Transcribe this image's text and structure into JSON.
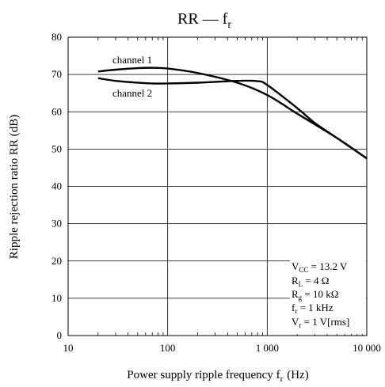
{
  "chart_data": {
    "type": "line",
    "title": "RR — f",
    "title_sub": "r",
    "xlabel": "Power supply ripple frequency f",
    "xlabel_sub": "r",
    "xlabel_suffix": "(Hz)",
    "ylabel": "Ripple rejection ratio RR (dB)",
    "x_scale": "log",
    "xlim": [
      10,
      10000
    ],
    "ylim": [
      0,
      80
    ],
    "x_ticks": [
      10,
      100,
      1000,
      10000
    ],
    "x_tick_labels": [
      "10",
      "100",
      "1 000",
      "10 000"
    ],
    "y_ticks": [
      0,
      10,
      20,
      30,
      40,
      50,
      60,
      70,
      80
    ],
    "y_tick_labels": [
      "0",
      "10",
      "20",
      "30",
      "40",
      "50",
      "60",
      "70",
      "80"
    ],
    "grid": true,
    "series": [
      {
        "name": "channel 1",
        "x": [
          20,
          30,
          50,
          70,
          100,
          200,
          500,
          1000,
          2000,
          5000,
          10000
        ],
        "y": [
          70.8,
          71.3,
          71.7,
          71.8,
          71.6,
          70.4,
          67.8,
          64.5,
          59.5,
          53.0,
          47.5
        ]
      },
      {
        "name": "channel 2",
        "x": [
          20,
          30,
          50,
          70,
          100,
          200,
          500,
          800,
          1000,
          2000,
          3000,
          5000,
          10000
        ],
        "y": [
          69.0,
          68.3,
          67.8,
          67.6,
          67.6,
          67.8,
          68.3,
          68.2,
          67.2,
          61.0,
          57.0,
          53.0,
          47.5
        ]
      }
    ],
    "conditions": [
      {
        "main": "V",
        "sub": "CC",
        "rest": " = 13.2 V"
      },
      {
        "main": "R",
        "sub": "L",
        "rest": " = 4 Ω"
      },
      {
        "main": "R",
        "sub": "g",
        "rest": " = 10 kΩ"
      },
      {
        "main": "f",
        "sub": "r",
        "rest": " = 1 kHz"
      },
      {
        "main": "V",
        "sub": "r",
        "rest": " = 1 V[rms]"
      }
    ]
  }
}
